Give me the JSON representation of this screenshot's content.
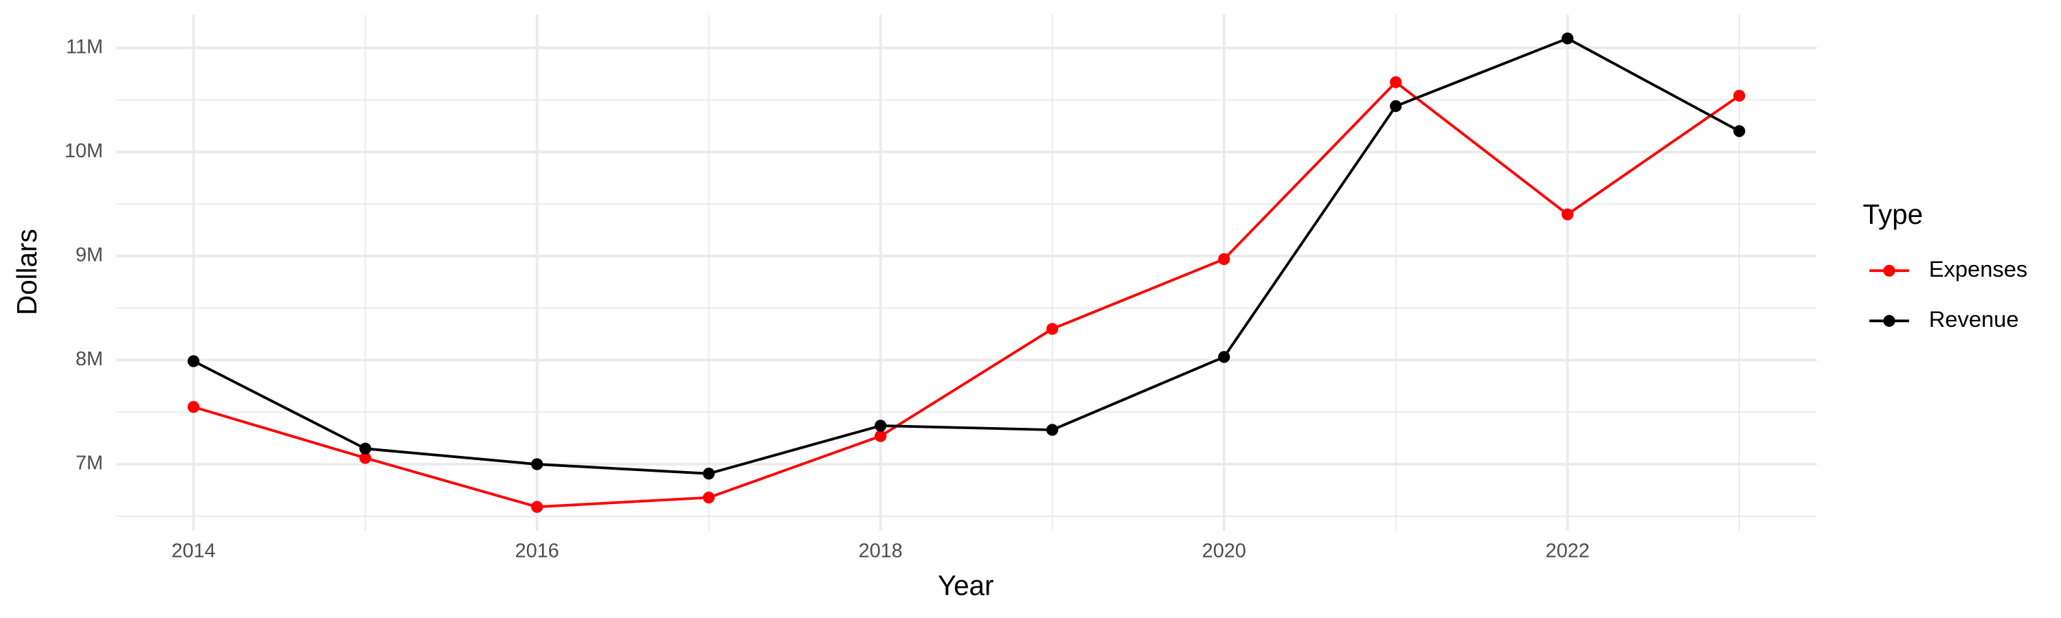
{
  "chart_data": {
    "type": "line",
    "x_label": "Year",
    "y_label": "Dollars",
    "x": [
      2014,
      2015,
      2016,
      2017,
      2018,
      2019,
      2020,
      2021,
      2022,
      2023
    ],
    "series": [
      {
        "name": "Expenses",
        "color": "#ff0000",
        "values": [
          7550000,
          7060000,
          6590000,
          6680000,
          7270000,
          8300000,
          8970000,
          10670000,
          9400000,
          10540000
        ]
      },
      {
        "name": "Revenue",
        "color": "#000000",
        "values": [
          7990000,
          7150000,
          7000000,
          6910000,
          7370000,
          7330000,
          8030000,
          10440000,
          11090000,
          10200000
        ]
      }
    ],
    "xlim": [
      2013.55,
      2023.45
    ],
    "xticks": [
      2014,
      2016,
      2018,
      2020,
      2022
    ],
    "ylim": [
      6360000,
      11320000
    ],
    "yticks": [
      {
        "value": 7000000,
        "label": "7M"
      },
      {
        "value": 8000000,
        "label": "8M"
      },
      {
        "value": 9000000,
        "label": "9M"
      },
      {
        "value": 10000000,
        "label": "10M"
      },
      {
        "value": 11000000,
        "label": "11M"
      }
    ],
    "grid": true,
    "minor_grid": true,
    "legend_title": "Type",
    "legend_position": "right"
  }
}
